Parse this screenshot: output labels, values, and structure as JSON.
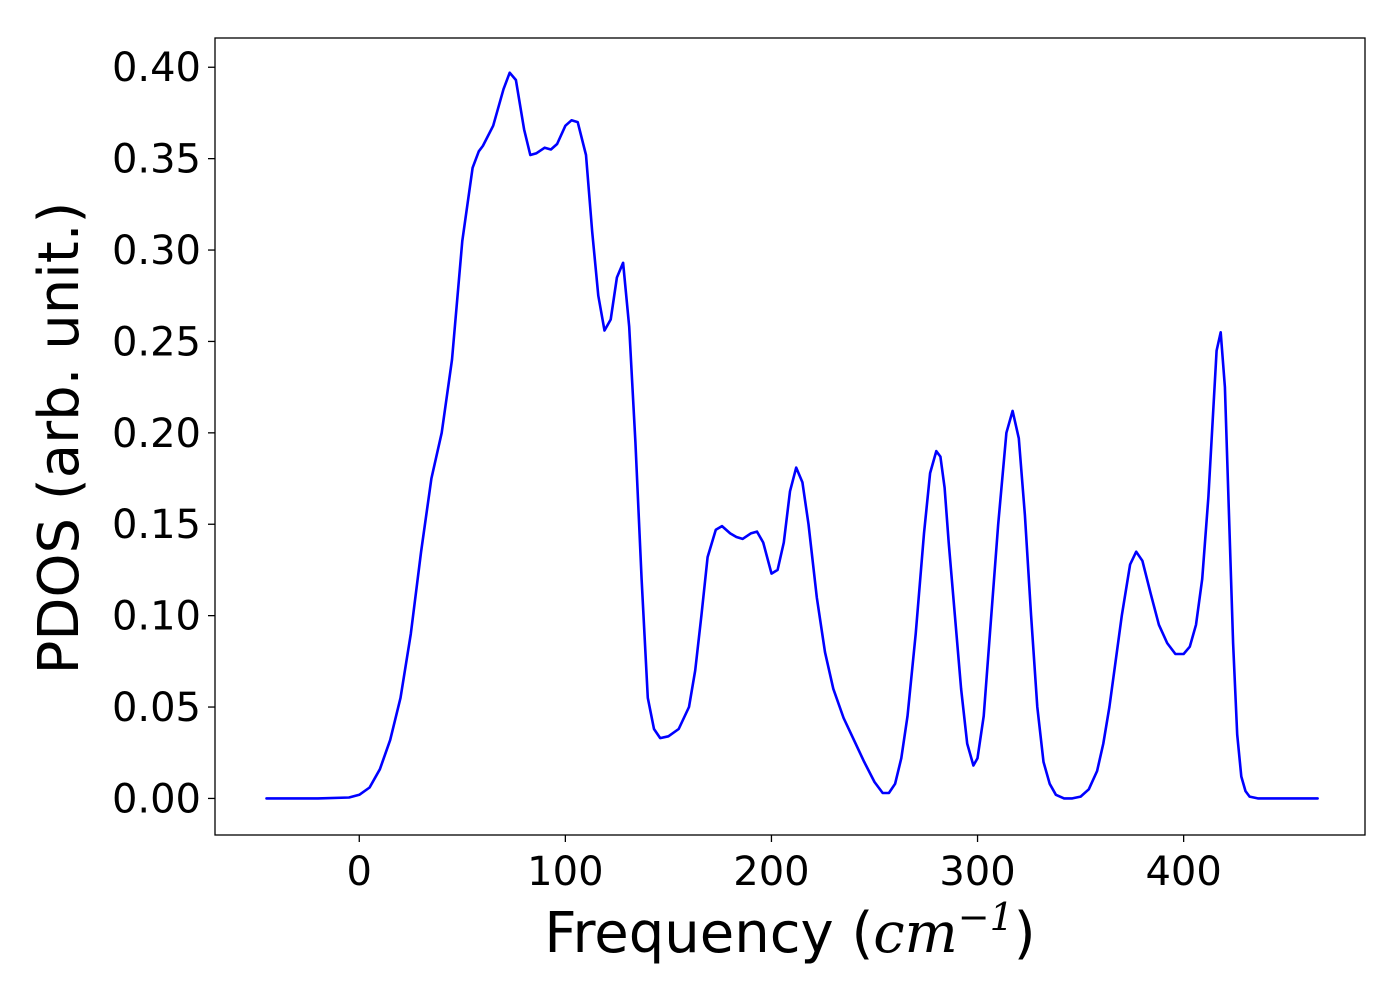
{
  "chart_data": {
    "type": "line",
    "title": "",
    "xlabel": "Frequency (",
    "xlabel_unit": "cm",
    "xlabel_unit_exp": "−1",
    "xlabel_close": ")",
    "ylabel": "PDOS (arb. unit.)",
    "xlim": [
      -70,
      488
    ],
    "ylim": [
      -0.02,
      0.416
    ],
    "xticks": [
      0,
      100,
      200,
      300,
      400
    ],
    "xtick_labels": [
      "0",
      "100",
      "200",
      "300",
      "400"
    ],
    "yticks": [
      0.0,
      0.05,
      0.1,
      0.15,
      0.2,
      0.25,
      0.3,
      0.35,
      0.4
    ],
    "ytick_labels": [
      "0.00",
      "0.05",
      "0.10",
      "0.15",
      "0.20",
      "0.25",
      "0.30",
      "0.35",
      "0.40"
    ],
    "grid": false,
    "series": [
      {
        "color": "#0000ff",
        "x": [
          -45,
          -20,
          -5,
          0,
          5,
          10,
          15,
          20,
          25,
          30,
          35,
          40,
          45,
          50,
          55,
          58,
          60,
          65,
          70,
          73,
          76,
          80,
          83,
          86,
          90,
          93,
          96,
          100,
          103,
          106,
          110,
          113,
          116,
          119,
          122,
          125,
          128,
          131,
          134,
          137,
          140,
          143,
          146,
          150,
          155,
          160,
          163,
          166,
          169,
          173,
          176,
          180,
          183,
          186,
          190,
          193,
          196,
          200,
          203,
          206,
          209,
          212,
          215,
          218,
          222,
          226,
          230,
          235,
          240,
          245,
          250,
          254,
          257,
          260,
          263,
          266,
          270,
          274,
          277,
          280,
          282,
          284,
          286,
          289,
          292,
          295,
          298,
          300,
          303,
          306,
          310,
          314,
          317,
          320,
          323,
          326,
          329,
          332,
          335,
          338,
          342,
          346,
          350,
          354,
          358,
          361,
          364,
          367,
          370,
          374,
          377,
          380,
          384,
          388,
          392,
          396,
          400,
          403,
          406,
          409,
          412,
          414,
          416,
          418,
          420,
          422,
          424,
          426,
          428,
          430,
          432,
          436,
          445,
          465
        ],
        "y": [
          0.0,
          0.0,
          0.0005,
          0.002,
          0.006,
          0.016,
          0.032,
          0.055,
          0.09,
          0.135,
          0.175,
          0.2,
          0.24,
          0.305,
          0.345,
          0.354,
          0.357,
          0.368,
          0.388,
          0.397,
          0.393,
          0.366,
          0.352,
          0.353,
          0.356,
          0.355,
          0.358,
          0.368,
          0.371,
          0.37,
          0.352,
          0.31,
          0.275,
          0.256,
          0.262,
          0.285,
          0.293,
          0.258,
          0.195,
          0.12,
          0.055,
          0.038,
          0.033,
          0.034,
          0.038,
          0.05,
          0.07,
          0.1,
          0.132,
          0.147,
          0.149,
          0.145,
          0.143,
          0.142,
          0.145,
          0.146,
          0.14,
          0.123,
          0.125,
          0.14,
          0.168,
          0.181,
          0.173,
          0.15,
          0.11,
          0.08,
          0.06,
          0.044,
          0.032,
          0.02,
          0.009,
          0.003,
          0.003,
          0.008,
          0.022,
          0.045,
          0.09,
          0.145,
          0.178,
          0.19,
          0.187,
          0.17,
          0.14,
          0.1,
          0.06,
          0.03,
          0.018,
          0.022,
          0.045,
          0.09,
          0.15,
          0.2,
          0.212,
          0.197,
          0.155,
          0.1,
          0.05,
          0.02,
          0.008,
          0.002,
          0.0,
          0.0,
          0.001,
          0.005,
          0.015,
          0.03,
          0.05,
          0.075,
          0.1,
          0.128,
          0.135,
          0.13,
          0.112,
          0.095,
          0.085,
          0.079,
          0.079,
          0.083,
          0.095,
          0.12,
          0.165,
          0.205,
          0.245,
          0.255,
          0.225,
          0.155,
          0.085,
          0.035,
          0.012,
          0.004,
          0.001,
          0.0,
          0.0,
          0.0
        ]
      }
    ]
  }
}
